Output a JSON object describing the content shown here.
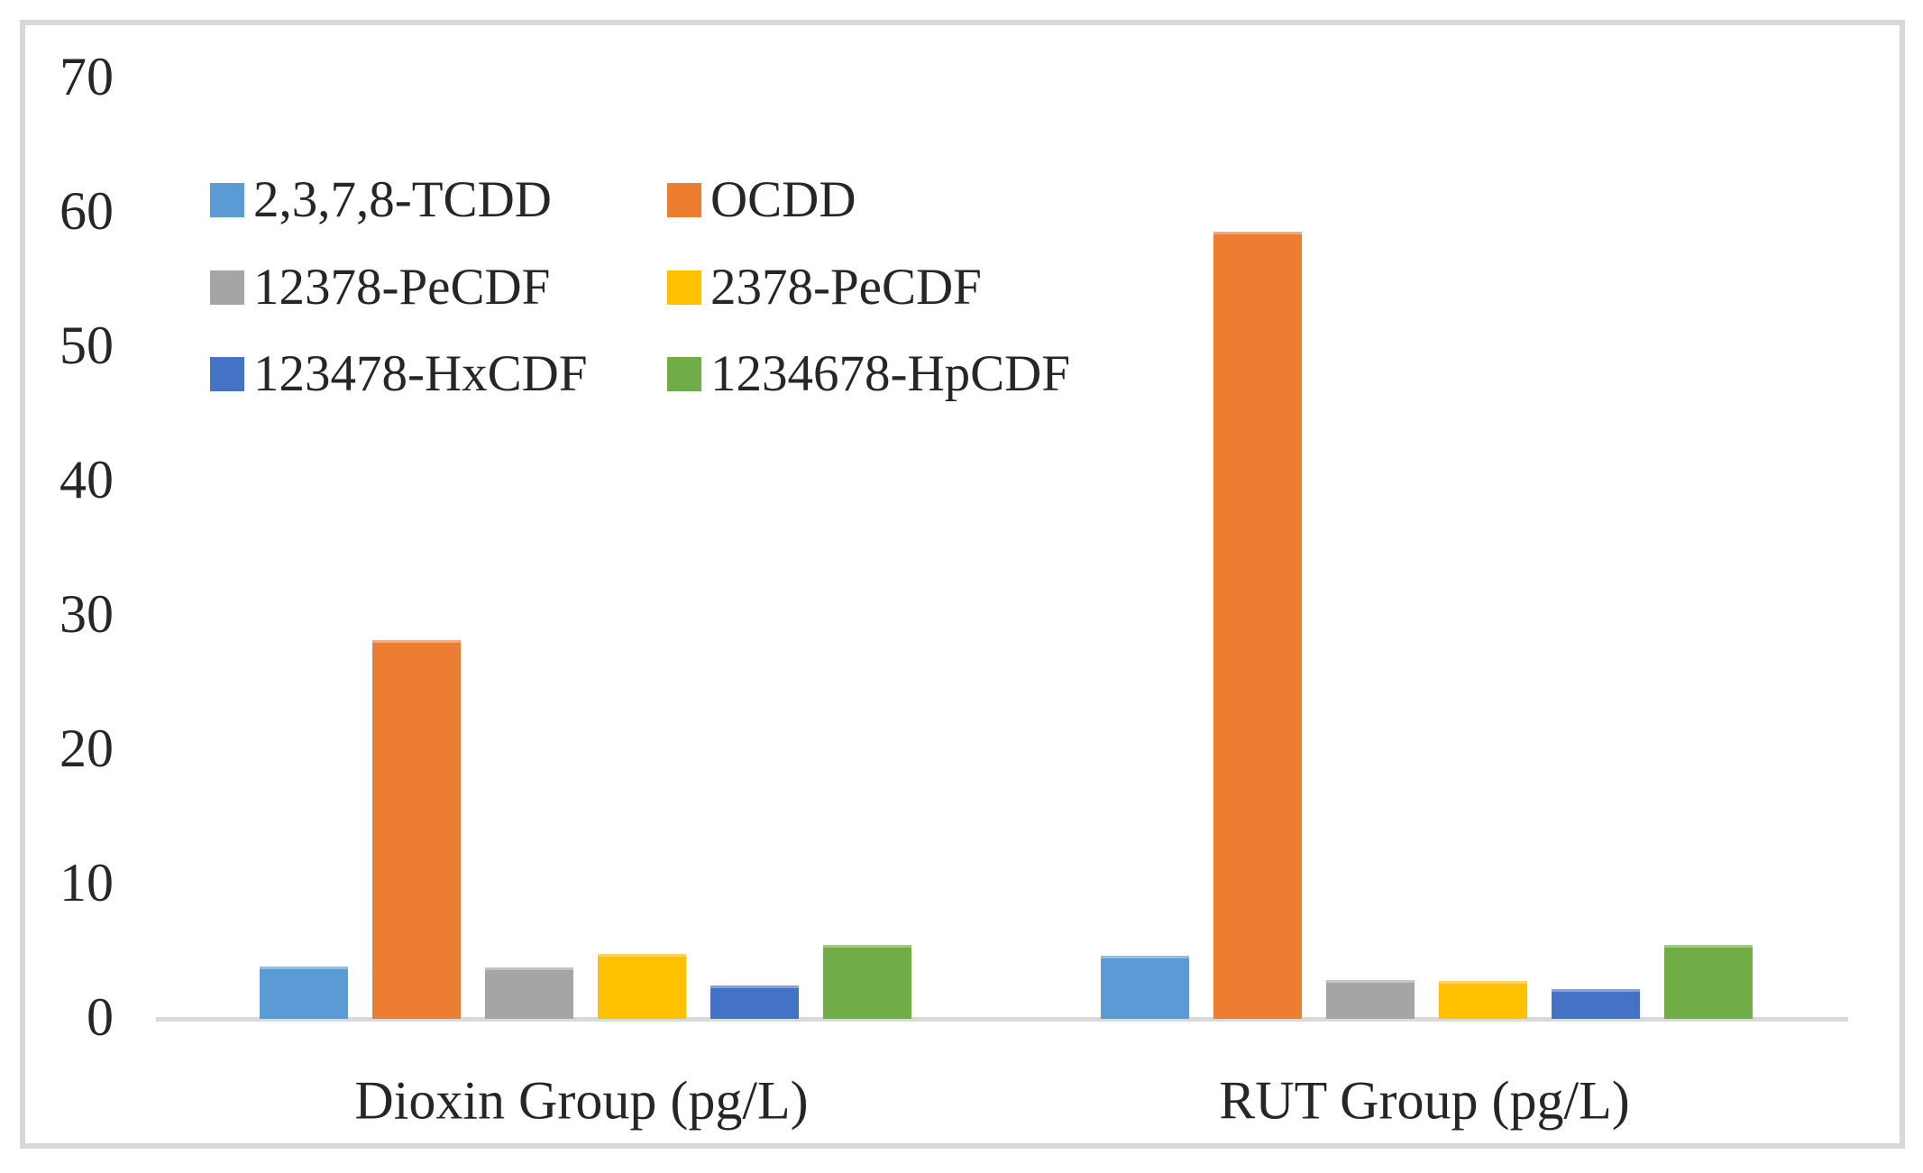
{
  "chart_data": {
    "type": "bar",
    "title": "",
    "xlabel": "",
    "ylabel": "",
    "categories": [
      "Dioxin Group (pg/L)",
      "RUT Group (pg/L)"
    ],
    "series": [
      {
        "name": "2,3,7,8-TCDD",
        "color": "#5B9BD5",
        "values": [
          3.9,
          4.7
        ]
      },
      {
        "name": "OCDD",
        "color": "#ED7D31",
        "values": [
          28.2,
          58.6
        ]
      },
      {
        "name": "12378-PeCDF",
        "color": "#A5A5A5",
        "values": [
          3.8,
          2.9
        ]
      },
      {
        "name": "2378-PeCDF",
        "color": "#FFC000",
        "values": [
          4.8,
          2.8
        ]
      },
      {
        "name": "123478-HxCDF",
        "color": "#4472C4",
        "values": [
          2.5,
          2.2
        ]
      },
      {
        "name": "1234678-HpCDF",
        "color": "#70AD47",
        "values": [
          5.5,
          5.5
        ]
      }
    ],
    "ylim": [
      0,
      70
    ],
    "yticks": [
      0,
      10,
      20,
      30,
      40,
      50,
      60,
      70
    ],
    "grid": false,
    "legend_position": "upper-left-inside",
    "legend_columns": 2
  },
  "frame": {
    "border_color": "#d8d8d8",
    "axis_line_color": "#d9d9d9",
    "text_color": "#262626"
  }
}
